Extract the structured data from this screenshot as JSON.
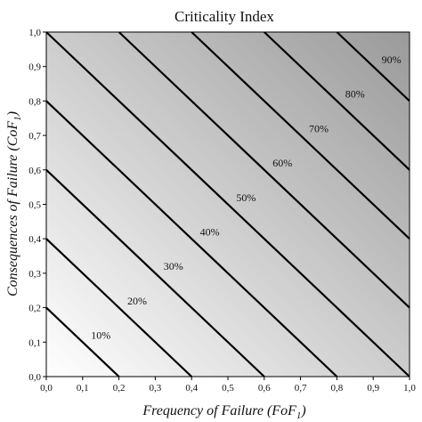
{
  "chart_data": {
    "type": "line",
    "title": "Criticality Index",
    "xlabel": {
      "main": "Frequency of Failure (FoF",
      "sub": "1",
      "close": ")"
    },
    "ylabel": {
      "main": "Consequences of Failure (CoF",
      "sub": "1",
      "close": ")"
    },
    "xlim": [
      0,
      1
    ],
    "ylim": [
      0,
      1
    ],
    "x_ticks": [
      "0,0",
      "0,1",
      "0,2",
      "0,3",
      "0,4",
      "0,5",
      "0,6",
      "0,7",
      "0,8",
      "0,9",
      "1,0"
    ],
    "y_ticks": [
      "0,0",
      "0,1",
      "0,2",
      "0,3",
      "0,4",
      "0,5",
      "0,6",
      "0,7",
      "0,8",
      "0,9",
      "1,0"
    ],
    "background": {
      "gradient": true,
      "color_start": "#ffffff",
      "color_end": "#9a9a9a",
      "direction": "bottom-left to top-right"
    },
    "series": [
      {
        "name": "10%",
        "x": [
          0,
          0.2
        ],
        "y": [
          0.2,
          0
        ],
        "label_at": [
          0.15,
          0.12
        ]
      },
      {
        "name": "20%",
        "x": [
          0,
          0.4
        ],
        "y": [
          0.4,
          0
        ],
        "label_at": [
          0.25,
          0.22
        ]
      },
      {
        "name": "30%",
        "x": [
          0,
          0.6
        ],
        "y": [
          0.6,
          0
        ],
        "label_at": [
          0.35,
          0.32
        ]
      },
      {
        "name": "40%",
        "x": [
          0,
          0.8
        ],
        "y": [
          0.8,
          0
        ],
        "label_at": [
          0.45,
          0.42
        ]
      },
      {
        "name": "50%",
        "x": [
          0,
          1.0
        ],
        "y": [
          1.0,
          0
        ],
        "label_at": [
          0.55,
          0.52
        ]
      },
      {
        "name": "60%",
        "x": [
          0.2,
          1.0
        ],
        "y": [
          1.0,
          0.2
        ],
        "label_at": [
          0.65,
          0.62
        ]
      },
      {
        "name": "70%",
        "x": [
          0.4,
          1.0
        ],
        "y": [
          1.0,
          0.4
        ],
        "label_at": [
          0.75,
          0.72
        ]
      },
      {
        "name": "80%",
        "x": [
          0.6,
          1.0
        ],
        "y": [
          1.0,
          0.6
        ],
        "label_at": [
          0.85,
          0.82
        ]
      },
      {
        "name": "90%",
        "x": [
          0.8,
          1.0
        ],
        "y": [
          1.0,
          0.8
        ],
        "label_at": [
          0.95,
          0.92
        ]
      }
    ],
    "line_color": "#000000"
  }
}
